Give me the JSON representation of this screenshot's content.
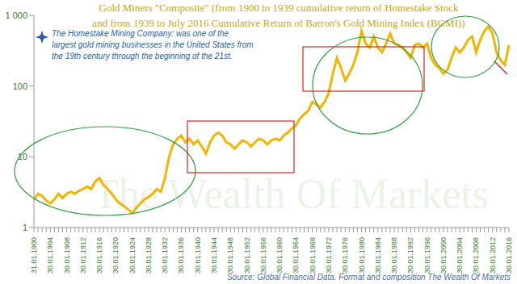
{
  "chart_data": {
    "type": "line",
    "title": [
      "Gold Miners \"Composite\" (from 1900 to 1939 cumulative return of Homestake Stock",
      "and from 1939 to July 2016 Cumulative Return of Barron's Gold Mining Index (BGMI))"
    ],
    "annotation": [
      "The Homestake Mining Company: was one of the",
      "largest gold mining businesses in the United States from",
      "the 19th century through the beginning of the 21st."
    ],
    "source": "Source: Global Financial Data.  Format and composition The Wealth Of Markets",
    "watermark": "The Wealth Of Markets",
    "categories": [
      "31.01.1900",
      null,
      null,
      null,
      "30.01.1904",
      null,
      null,
      null,
      "30.01.1908",
      null,
      null,
      null,
      "30.01.1912",
      null,
      null,
      null,
      "30.01.1916",
      null,
      null,
      null,
      "30.01.1920",
      null,
      null,
      null,
      "30.01.1924",
      null,
      null,
      null,
      "30.01.1928",
      null,
      null,
      null,
      "30.01.1932",
      null,
      null,
      null,
      "30.01.1936",
      null,
      null,
      null,
      "30.01.1940",
      null,
      null,
      null,
      "30.01.1944",
      null,
      null,
      null,
      "30.01.1948",
      null,
      null,
      null,
      "30.01.1952",
      null,
      null,
      null,
      "30.01.1956",
      null,
      null,
      null,
      "30.01.1960",
      null,
      null,
      null,
      "30.01.1964",
      null,
      null,
      null,
      "30.01.1968",
      null,
      null,
      null,
      "30.01.1972",
      null,
      null,
      null,
      "30.01.1976",
      null,
      null,
      null,
      "30.01.1980",
      null,
      null,
      null,
      "30.01.1984",
      null,
      null,
      null,
      "30.01.1988",
      null,
      null,
      null,
      "30.01.1992",
      null,
      null,
      null,
      "30.01.1996",
      null,
      null,
      null,
      "30.01.2000",
      null,
      null,
      null,
      "30.01.2004",
      null,
      null,
      null,
      "30.01.2008",
      null,
      null,
      null,
      "30.01.2012",
      null,
      null,
      null,
      "30.01.2016"
    ],
    "values": [
      2.5,
      3,
      2.8,
      2.4,
      2.2,
      2.5,
      3,
      2.6,
      3,
      3.2,
      3,
      3.3,
      3.5,
      3.8,
      3.5,
      4.5,
      5,
      4,
      3.5,
      3,
      2.5,
      2.2,
      2,
      1.8,
      1.6,
      1.9,
      2.2,
      2.5,
      2.7,
      3,
      3.5,
      3.2,
      5,
      10,
      15,
      18,
      20,
      16,
      18,
      15,
      17,
      14,
      11,
      16,
      20,
      22,
      20,
      16,
      15,
      13,
      15,
      17,
      16,
      14,
      16,
      18,
      17,
      15,
      17,
      18,
      17,
      20,
      22,
      25,
      28,
      35,
      40,
      45,
      60,
      55,
      50,
      60,
      80,
      150,
      250,
      180,
      120,
      150,
      200,
      300,
      600,
      400,
      350,
      500,
      350,
      300,
      400,
      550,
      400,
      380,
      350,
      300,
      250,
      380,
      400,
      350,
      400,
      250,
      200,
      180,
      150,
      170,
      250,
      350,
      300,
      350,
      450,
      500,
      300,
      450,
      600,
      700,
      550,
      300,
      230,
      200,
      380
    ],
    "color": "#f5b400",
    "ylim": [
      1,
      1000
    ],
    "yticks": [
      1,
      10,
      100,
      {
        "value": 1000,
        "label": "1 000"
      }
    ],
    "log": "y",
    "grid": false
  }
}
